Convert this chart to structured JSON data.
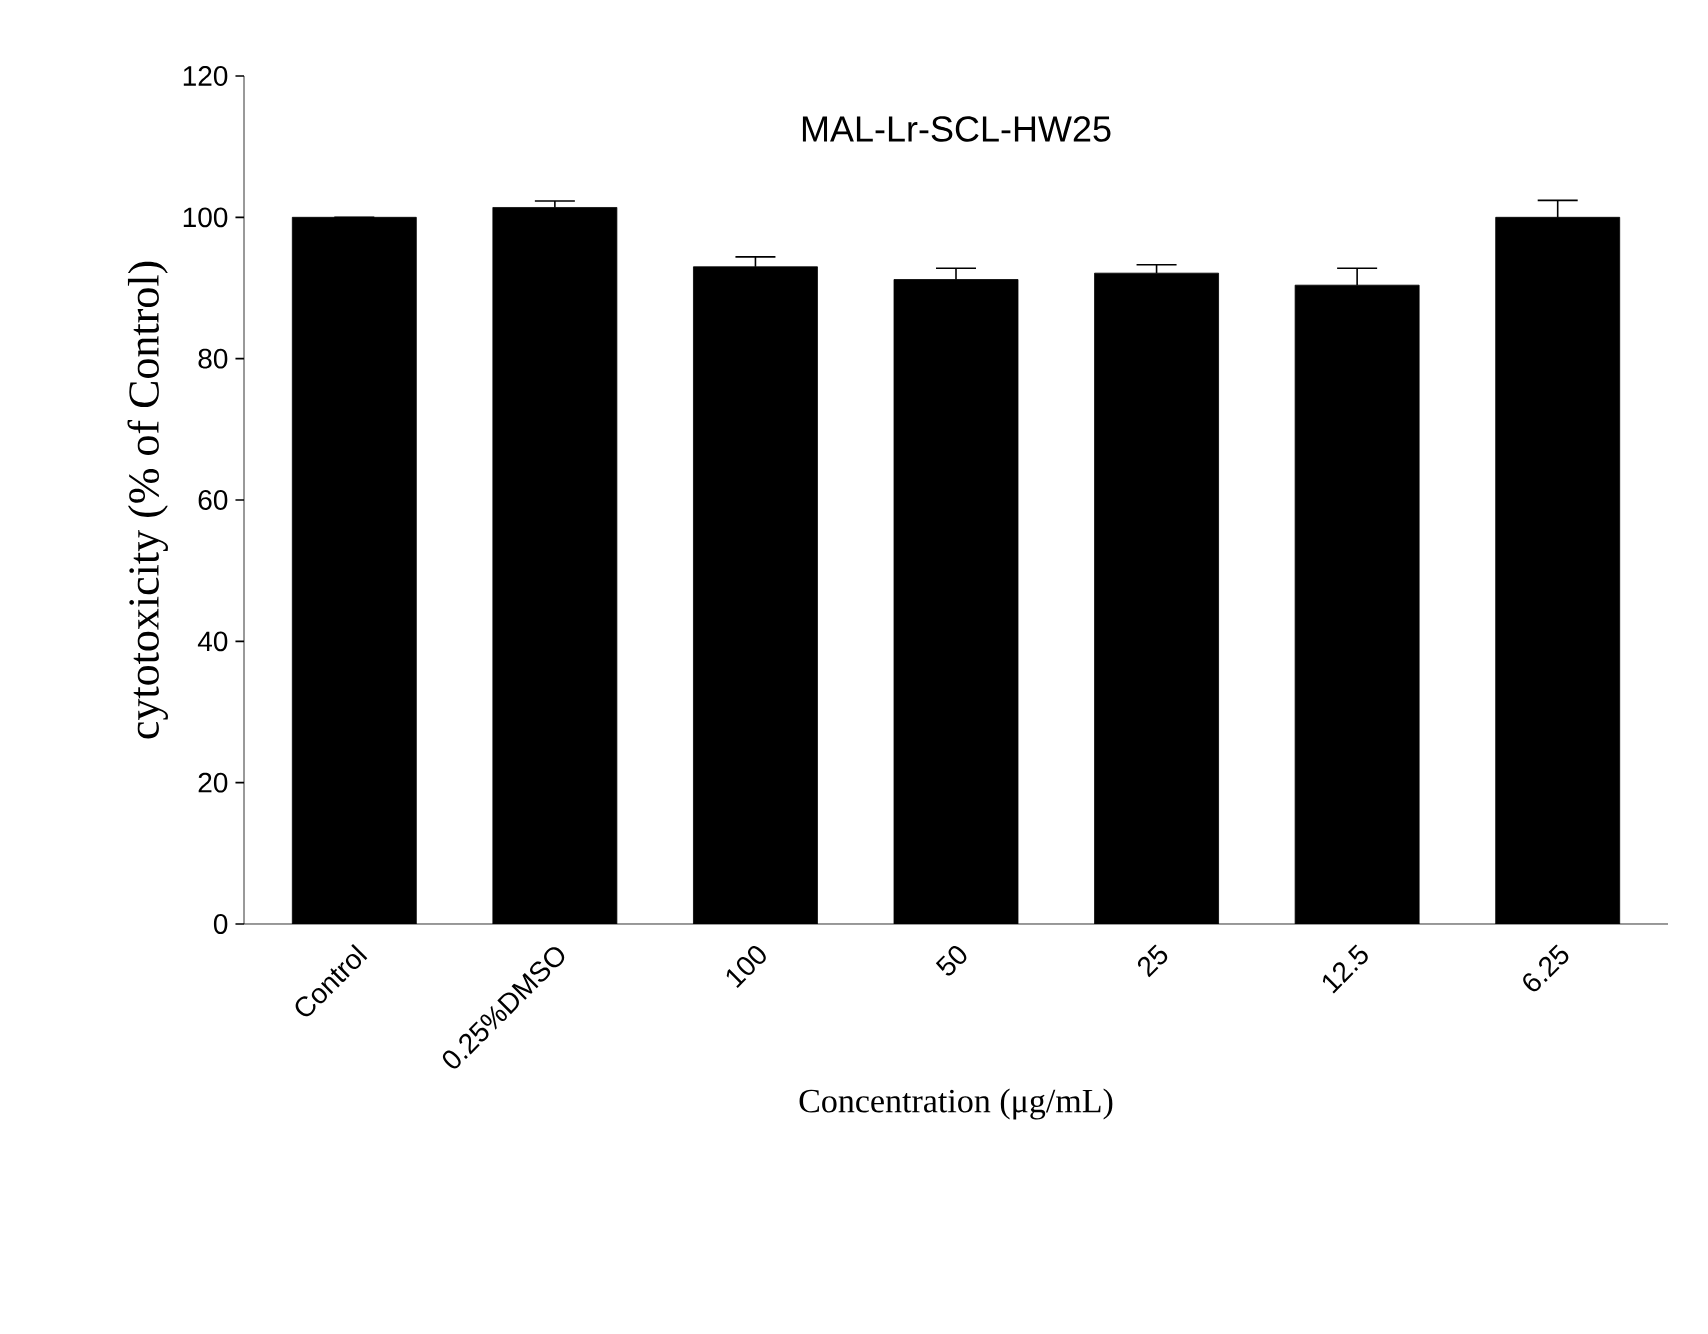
{
  "chart_data": {
    "type": "bar",
    "title": "MAL-Lr-SCL-HW25",
    "xlabel": "Concentration (μg/mL)",
    "ylabel": "cytotoxicity (% of Control)",
    "categories": [
      "Control",
      "0.25%DMSO",
      "100",
      "50",
      "25",
      "12.5",
      "6.25"
    ],
    "values": [
      100,
      101.4,
      93.0,
      91.2,
      92.1,
      90.4,
      100
    ],
    "errors": [
      null,
      0.9,
      1.4,
      1.6,
      1.2,
      2.4,
      2.4
    ],
    "color": "#000000",
    "ylim": [
      0,
      120
    ],
    "yticks": [
      0,
      20,
      40,
      60,
      80,
      100,
      120
    ],
    "grid": false
  }
}
